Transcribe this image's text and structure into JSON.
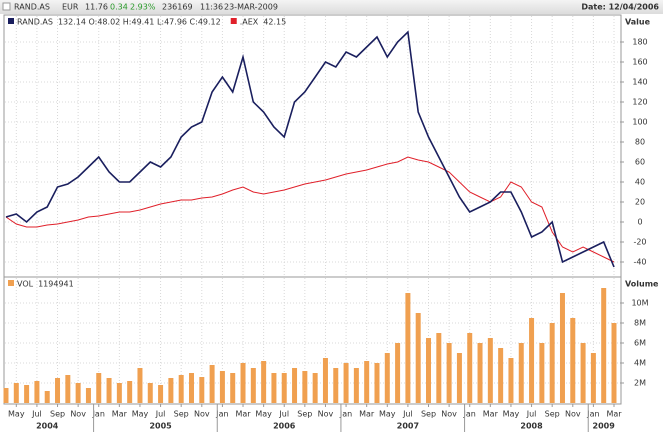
{
  "header": {
    "symbol": "RAND.AS",
    "currency": "EUR",
    "price": "11.76",
    "change": "0.34",
    "change_pct": "2.93%",
    "volume": "236169",
    "time": "11:36",
    "date": "23-MAR-2009",
    "date_right": "Date: 12/04/2006"
  },
  "chart_data": [
    {
      "type": "line",
      "y_label": "Value",
      "grid": true,
      "x": [
        "2004-04",
        "2004-05",
        "2004-06",
        "2004-07",
        "2004-08",
        "2004-09",
        "2004-10",
        "2004-11",
        "2004-12",
        "2005-01",
        "2005-02",
        "2005-03",
        "2005-04",
        "2005-05",
        "2005-06",
        "2005-07",
        "2005-08",
        "2005-09",
        "2005-10",
        "2005-11",
        "2005-12",
        "2006-01",
        "2006-02",
        "2006-03",
        "2006-04",
        "2006-05",
        "2006-06",
        "2006-07",
        "2006-08",
        "2006-09",
        "2006-10",
        "2006-11",
        "2006-12",
        "2007-01",
        "2007-02",
        "2007-03",
        "2007-04",
        "2007-05",
        "2007-06",
        "2007-07",
        "2007-08",
        "2007-09",
        "2007-10",
        "2007-11",
        "2007-12",
        "2008-01",
        "2008-02",
        "2008-03",
        "2008-04",
        "2008-05",
        "2008-06",
        "2008-07",
        "2008-08",
        "2008-09",
        "2008-10",
        "2008-11",
        "2008-12",
        "2009-01",
        "2009-02",
        "2009-03"
      ],
      "series": [
        {
          "name": "RAND.AS",
          "legend_info": "132.14 O:48.02 H:49.41 L:47.96 C:49.12",
          "color": "#1a1f5e",
          "values": [
            5,
            8,
            0,
            10,
            15,
            35,
            38,
            45,
            55,
            65,
            50,
            40,
            40,
            50,
            60,
            55,
            65,
            85,
            95,
            100,
            130,
            145,
            130,
            165,
            120,
            110,
            95,
            85,
            120,
            130,
            145,
            160,
            155,
            170,
            165,
            175,
            185,
            165,
            180,
            190,
            110,
            85,
            65,
            45,
            25,
            10,
            15,
            20,
            30,
            30,
            10,
            -15,
            -10,
            0,
            -40,
            -35,
            -30,
            -25,
            -20,
            -45
          ]
        },
        {
          "name": ".AEX",
          "legend_info": "42.15",
          "color": "#e0202a",
          "values": [
            5,
            -2,
            -5,
            -5,
            -3,
            -2,
            0,
            2,
            5,
            6,
            8,
            10,
            10,
            12,
            15,
            18,
            20,
            22,
            22,
            24,
            25,
            28,
            32,
            35,
            30,
            28,
            30,
            32,
            35,
            38,
            40,
            42,
            45,
            48,
            50,
            52,
            55,
            58,
            60,
            65,
            62,
            60,
            55,
            50,
            40,
            30,
            25,
            20,
            25,
            40,
            35,
            20,
            15,
            -10,
            -25,
            -30,
            -25,
            -30,
            -35,
            -40
          ]
        }
      ],
      "ylim": [
        -53,
        195
      ],
      "yticks": [
        -40,
        -20,
        0,
        20,
        40,
        60,
        80,
        100,
        120,
        140,
        160,
        180
      ]
    },
    {
      "type": "bar",
      "y_label": "Volume",
      "grid": true,
      "x": [
        "2004-04",
        "2004-05",
        "2004-06",
        "2004-07",
        "2004-08",
        "2004-09",
        "2004-10",
        "2004-11",
        "2004-12",
        "2005-01",
        "2005-02",
        "2005-03",
        "2005-04",
        "2005-05",
        "2005-06",
        "2005-07",
        "2005-08",
        "2005-09",
        "2005-10",
        "2005-11",
        "2005-12",
        "2006-01",
        "2006-02",
        "2006-03",
        "2006-04",
        "2006-05",
        "2006-06",
        "2006-07",
        "2006-08",
        "2006-09",
        "2006-10",
        "2006-11",
        "2006-12",
        "2007-01",
        "2007-02",
        "2007-03",
        "2007-04",
        "2007-05",
        "2007-06",
        "2007-07",
        "2007-08",
        "2007-09",
        "2007-10",
        "2007-11",
        "2007-12",
        "2008-01",
        "2008-02",
        "2008-03",
        "2008-04",
        "2008-05",
        "2008-06",
        "2008-07",
        "2008-08",
        "2008-09",
        "2008-10",
        "2008-11",
        "2008-12",
        "2009-01",
        "2009-02",
        "2009-03"
      ],
      "series": [
        {
          "name": "VOL",
          "legend_info": "1194941",
          "color": "#f0a050",
          "values": [
            1500000,
            2000000,
            1800000,
            2200000,
            1200000,
            2500000,
            2800000,
            2000000,
            1500000,
            3000000,
            2500000,
            2000000,
            2200000,
            3500000,
            2000000,
            1800000,
            2500000,
            2800000,
            3000000,
            2600000,
            3800000,
            3200000,
            3000000,
            4000000,
            3500000,
            4200000,
            3000000,
            3000000,
            3500000,
            3200000,
            3000000,
            4500000,
            3500000,
            4000000,
            3500000,
            4200000,
            4000000,
            5000000,
            6000000,
            11000000,
            9000000,
            6500000,
            7000000,
            6000000,
            5000000,
            7000000,
            6000000,
            6500000,
            5500000,
            4500000,
            6000000,
            8500000,
            6000000,
            8000000,
            11000000,
            8500000,
            6000000,
            5000000,
            11500000,
            8000000
          ]
        }
      ],
      "ylim": [
        0,
        12000000
      ],
      "yticks": [
        {
          "value": 2000000,
          "label": "2M"
        },
        {
          "value": 4000000,
          "label": "4M"
        },
        {
          "value": 6000000,
          "label": "6M"
        },
        {
          "value": 8000000,
          "label": "8M"
        },
        {
          "value": 10000000,
          "label": "10M"
        }
      ],
      "xticks": [
        {
          "value": "2004-05",
          "label": "May"
        },
        {
          "value": "2004-07",
          "label": "Jul"
        },
        {
          "value": "2004-09",
          "label": "Sep"
        },
        {
          "value": "2004-11",
          "label": "Nov"
        },
        {
          "value": "2005-01",
          "label": "Jan"
        },
        {
          "value": "2005-03",
          "label": "Mar"
        },
        {
          "value": "2005-05",
          "label": "May"
        },
        {
          "value": "2005-07",
          "label": "Jul"
        },
        {
          "value": "2005-09",
          "label": "Sep"
        },
        {
          "value": "2005-11",
          "label": "Nov"
        },
        {
          "value": "2006-01",
          "label": "Jan"
        },
        {
          "value": "2006-03",
          "label": "Mar"
        },
        {
          "value": "2006-05",
          "label": "May"
        },
        {
          "value": "2006-07",
          "label": "Jul"
        },
        {
          "value": "2006-09",
          "label": "Sep"
        },
        {
          "value": "2006-11",
          "label": "Nov"
        },
        {
          "value": "2007-01",
          "label": "Jan"
        },
        {
          "value": "2007-03",
          "label": "Mar"
        },
        {
          "value": "2007-05",
          "label": "May"
        },
        {
          "value": "2007-07",
          "label": "Jul"
        },
        {
          "value": "2007-09",
          "label": "Sep"
        },
        {
          "value": "2007-11",
          "label": "Nov"
        },
        {
          "value": "2008-01",
          "label": "Jan"
        },
        {
          "value": "2008-03",
          "label": "Mar"
        },
        {
          "value": "2008-05",
          "label": "May"
        },
        {
          "value": "2008-07",
          "label": "Jul"
        },
        {
          "value": "2008-09",
          "label": "Sep"
        },
        {
          "value": "2008-11",
          "label": "Nov"
        },
        {
          "value": "2009-01",
          "label": "Jan"
        },
        {
          "value": "2009-03",
          "label": "Mar"
        }
      ],
      "year_labels": [
        {
          "value": "2004-08",
          "label": "2004"
        },
        {
          "value": "2005-07",
          "label": "2005"
        },
        {
          "value": "2006-07",
          "label": "2006"
        },
        {
          "value": "2007-07",
          "label": "2007"
        },
        {
          "value": "2008-07",
          "label": "2008"
        },
        {
          "value": "2009-02",
          "label": "2009"
        }
      ]
    }
  ]
}
